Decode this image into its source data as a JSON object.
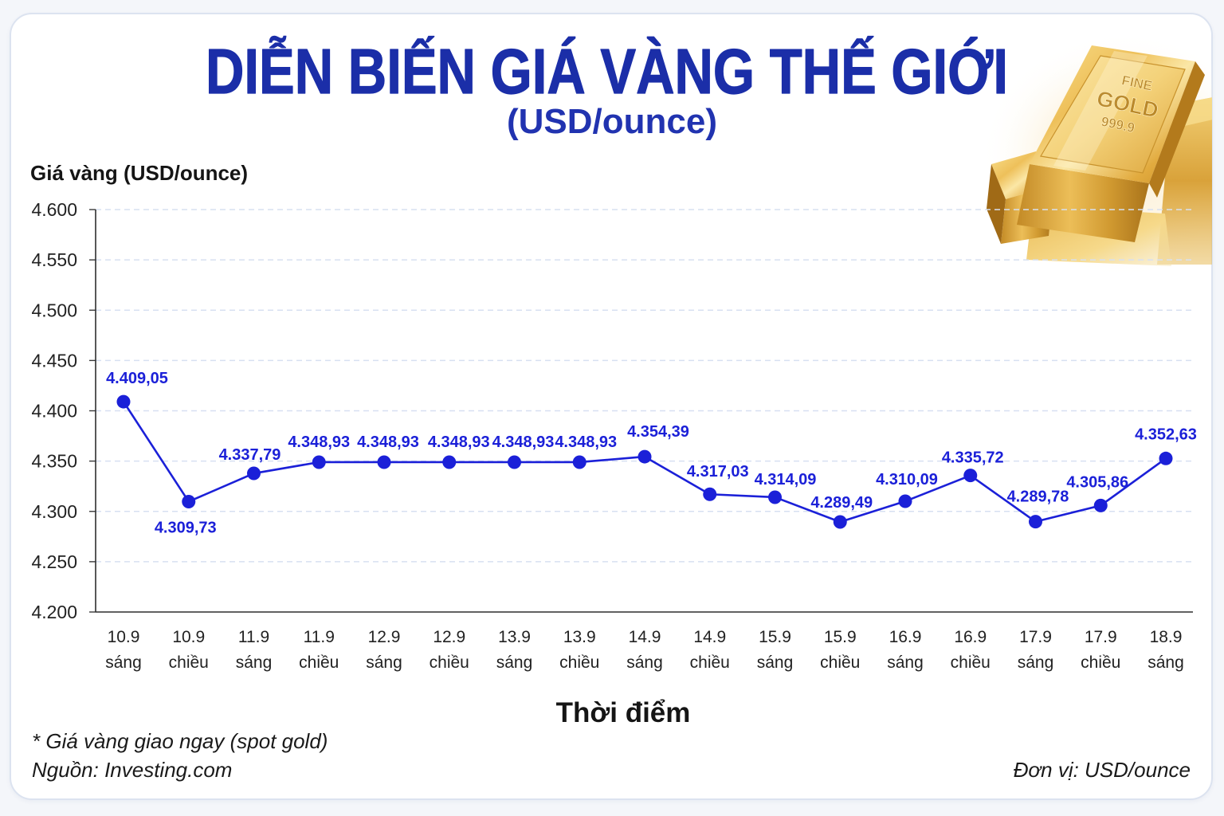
{
  "chart_data": {
    "type": "line",
    "title": "DIỄN BIẾN GIÁ VÀNG THẾ GIỚI",
    "subtitle": "(USD/ounce)",
    "ylabel": "Giá vàng (USD/ounce)",
    "xlabel": "Thời điểm",
    "ylim": [
      4200,
      4600
    ],
    "yticks": [
      4200,
      4250,
      4300,
      4350,
      4400,
      4450,
      4500,
      4550,
      4600
    ],
    "ytick_labels": [
      "4.200",
      "4.250",
      "4.300",
      "4.350",
      "4.400",
      "4.450",
      "4.500",
      "4.550",
      "4.600"
    ],
    "categories": [
      {
        "date": "10.9",
        "period": "sáng"
      },
      {
        "date": "10.9",
        "period": "chiều"
      },
      {
        "date": "11.9",
        "period": "sáng"
      },
      {
        "date": "11.9",
        "period": "chiều"
      },
      {
        "date": "12.9",
        "period": "sáng"
      },
      {
        "date": "12.9",
        "period": "chiều"
      },
      {
        "date": "13.9",
        "period": "sáng"
      },
      {
        "date": "13.9",
        "period": "chiều"
      },
      {
        "date": "14.9",
        "period": "sáng"
      },
      {
        "date": "14.9",
        "period": "chiều"
      },
      {
        "date": "15.9",
        "period": "sáng"
      },
      {
        "date": "15.9",
        "period": "chiều"
      },
      {
        "date": "16.9",
        "period": "sáng"
      },
      {
        "date": "16.9",
        "period": "chiều"
      },
      {
        "date": "17.9",
        "period": "sáng"
      },
      {
        "date": "17.9",
        "period": "chiều"
      },
      {
        "date": "18.9",
        "period": "sáng"
      }
    ],
    "series": [
      {
        "values": [
          4409.05,
          4309.73,
          4337.79,
          4348.93,
          4348.93,
          4348.93,
          4348.93,
          4348.93,
          4354.39,
          4317.03,
          4314.09,
          4289.49,
          4310.09,
          4335.72,
          4289.78,
          4305.86,
          4352.63
        ],
        "data_labels": [
          "4.409,05",
          "4.309,73",
          "4.337,79",
          "4.348,93",
          "4.348,93",
          "4.348,93",
          "4.348,93",
          "4.348,93",
          "4.354,39",
          "4.317,03",
          "4.314,09",
          "4.289,49",
          "4.310,09",
          "4.335,72",
          "4.289,78",
          "4.305,86",
          "4.352,63"
        ],
        "color": "#1b20d8",
        "marker": "circle"
      }
    ],
    "grid": true,
    "grid_style": "dashed",
    "legend": "none"
  },
  "notes": {
    "footnote": "* Giá vàng giao ngay (spot gold)",
    "source": "Nguồn: Investing.com",
    "unit": "Đơn vị: USD/ounce"
  },
  "decoration": {
    "engraving": [
      "FINE",
      "GOLD",
      "999.9"
    ]
  },
  "colors": {
    "title": "#1b2ea8",
    "subtitle": "#2133b0",
    "grid": "#d7e0f1",
    "text": "#1a1a1a",
    "card_border": "#dce3f0",
    "gold": "#e6b43c"
  }
}
